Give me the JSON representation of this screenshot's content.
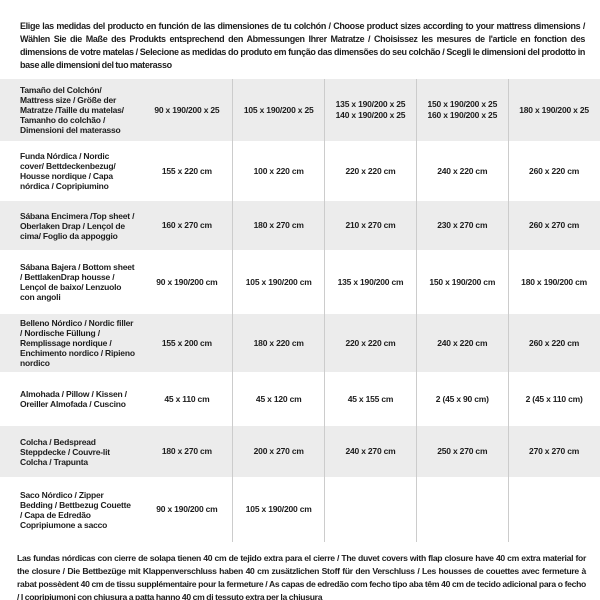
{
  "intro": "Elige las medidas del producto en función de las dimensiones de tu colchón / Choose product sizes according to your mattress dimensions / Wählen Sie die Maße des Produkts entsprechend den Abmessungen Ihrer Matratze / Choisissez les mesures de l'article en fonction des dimensions de votre matelas / Selecione as medidas do produto em função das dimensões do seu colchão / Scegli le dimensioni del prodotto in base alle dimensioni del tuo materasso",
  "table": {
    "rows": [
      {
        "label": "Tamaño del Colchón/ Mattress size / Größe der Matratze /Taille du matelas/ Tamanho do colchão / Dimensioni del materasso",
        "values": [
          [
            "90 x 190/200 x 25"
          ],
          [
            "105 x 190/200 x 25"
          ],
          [
            "135 x 190/200 x 25",
            "140 x 190/200 x 25"
          ],
          [
            "150 x 190/200 x 25",
            "160 x 190/200 x 25"
          ],
          [
            "180 x 190/200 x 25"
          ]
        ]
      },
      {
        "label": "Funda Nórdica / Nordic cover/ Bettdeckenbezug/ Housse nordique / Capa nórdica / Copripiumino",
        "values": [
          [
            "155 x 220 cm"
          ],
          [
            "100 x 220 cm"
          ],
          [
            "220 x 220 cm"
          ],
          [
            "240 x 220 cm"
          ],
          [
            "260 x 220 cm"
          ]
        ]
      },
      {
        "label": "Sábana Encimera /Top sheet / Oberlaken Drap / Lençol de cima/ Foglio da appoggio",
        "values": [
          [
            "160 x 270 cm"
          ],
          [
            "180 x 270 cm"
          ],
          [
            "210 x 270 cm"
          ],
          [
            "230 x 270 cm"
          ],
          [
            "260 x 270 cm"
          ]
        ]
      },
      {
        "label": "Sábana Bajera / Bottom sheet / BettlakenDrap housse / Lençol de baixo/ Lenzuolo con angoli",
        "values": [
          [
            "90 x 190/200 cm"
          ],
          [
            "105 x 190/200 cm"
          ],
          [
            "135 x 190/200 cm"
          ],
          [
            "150 x 190/200 cm"
          ],
          [
            "180 x 190/200 cm"
          ]
        ]
      },
      {
        "label": "Belleno Nórdico / Nordic filler / Nordische Füllung / Remplissage nordique / Enchimento nordico / Ripieno nordico",
        "values": [
          [
            "155 x 200 cm"
          ],
          [
            "180 x 220 cm"
          ],
          [
            "220 x 220 cm"
          ],
          [
            "240 x 220 cm"
          ],
          [
            "260 x 220 cm"
          ]
        ]
      },
      {
        "label": "Almohada / Pillow / Kissen / Oreiller Almofada / Cuscino",
        "values": [
          [
            "45 x 110 cm"
          ],
          [
            "45 x 120 cm"
          ],
          [
            "45 x 155 cm"
          ],
          [
            "2 (45 x 90 cm)"
          ],
          [
            "2 (45 x 110 cm)"
          ]
        ]
      },
      {
        "label": "Colcha / Bedspread Steppdecke / Couvre-lit Colcha / Trapunta",
        "values": [
          [
            "180 x 270 cm"
          ],
          [
            "200 x 270 cm"
          ],
          [
            "240 x 270 cm"
          ],
          [
            "250 x 270 cm"
          ],
          [
            "270 x 270 cm"
          ]
        ]
      },
      {
        "label": "Saco Nórdico / Zipper Bedding / Bettbezug Couette / Capa de Edredão Copripiumone a sacco",
        "values": [
          [
            "90 x 190/200 cm"
          ],
          [
            "105 x 190/200 cm"
          ],
          [],
          [],
          []
        ]
      }
    ]
  },
  "footnote": "Las fundas nórdicas con cierre de solapa tienen 40 cm de tejido extra para el cierre / The duvet covers with flap closure have 40 cm extra material for the closure / Die Bettbezüge mit Klappenverschluss haben 40 cm zusätzlichen Stoff für den Verschluss / Les housses de couettes avec fermeture à rabat possèdent 40 cm de tissu supplémentaire pour la fermeture / As capas de edredão com fecho tipo aba têm 40 cm de tecido adicional para o fecho / I copripiumoni con chiusura a patta hanno 40 cm di tessuto extra per la chiusura",
  "colors": {
    "row_shade": "#ececec",
    "divider": "#cccccc",
    "text": "#1d1d1d",
    "background": "#ffffff"
  }
}
